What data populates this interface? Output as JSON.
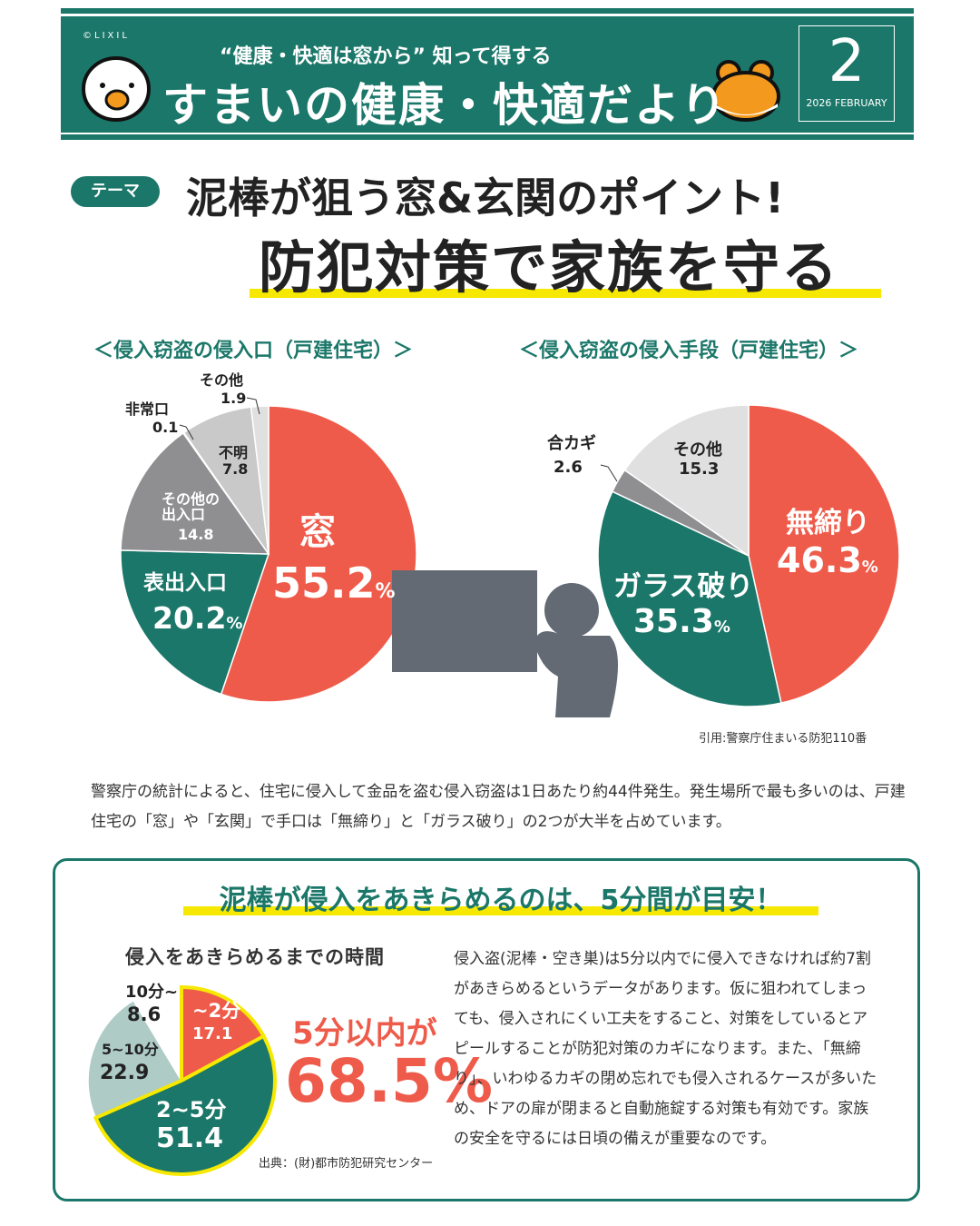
{
  "header": {
    "copyright": "©LIXIL",
    "tagline": "“健康・快適は窓から” 知って得する",
    "title": "すまいの健康・快適だより",
    "issue_number": "2",
    "issue_date": "2026 FEBRUARY"
  },
  "theme": {
    "badge": "テーマ",
    "headline": "泥棒が狙う窓&玄関のポイント!",
    "subheadline": "防犯対策で家族を守る"
  },
  "colors": {
    "teal": "#1b7769",
    "red": "#ef5b4a",
    "yellow": "#f6e800"
  },
  "chart_data": [
    {
      "type": "pie",
      "title": "＜侵入窃盗の侵入口（戸建住宅）＞",
      "unit": "%",
      "slices": [
        {
          "label": "窓",
          "value": 55.2,
          "color": "#ef5b4a"
        },
        {
          "label": "表出入口",
          "value": 20.2,
          "color": "#1b7769"
        },
        {
          "label": "その他の出入口",
          "value": 14.8,
          "color": "#8f8f92"
        },
        {
          "label": "非常口",
          "value": 0.1,
          "color": "#8f8f92"
        },
        {
          "label": "不明",
          "value": 7.8,
          "color": "#c9c9c9"
        },
        {
          "label": "その他",
          "value": 1.9,
          "color": "#e0e0e0"
        }
      ]
    },
    {
      "type": "pie",
      "title": "＜侵入窃盗の侵入手段（戸建住宅）＞",
      "unit": "%",
      "slices": [
        {
          "label": "無締り",
          "value": 46.3,
          "color": "#ef5b4a"
        },
        {
          "label": "ガラス破り",
          "value": 35.3,
          "color": "#1b7769"
        },
        {
          "label": "合カギ",
          "value": 2.6,
          "color": "#8f8f92"
        },
        {
          "label": "その他",
          "value": 15.3,
          "color": "#e0e0e0"
        }
      ]
    },
    {
      "type": "pie",
      "title": "侵入をあきらめるまでの時間",
      "unit": "%",
      "slices": [
        {
          "label": "~2分",
          "value": 17.1,
          "color": "#ef5b4a"
        },
        {
          "label": "2~5分",
          "value": 51.4,
          "color": "#1b7769"
        },
        {
          "label": "5~10分",
          "value": 22.9,
          "color": "#aecbc6"
        },
        {
          "label": "10分~",
          "value": 8.6,
          "color": "#ffffff"
        }
      ]
    }
  ],
  "charts_text": {
    "c1": {
      "window": "窓",
      "window_v": "55.2",
      "front": "表出入口",
      "front_v": "20.2",
      "otherdoor": "その他の\n出入口",
      "otherdoor_v": "14.8",
      "emergency": "非常口",
      "emergency_v": "0.1",
      "unknown": "不明",
      "unknown_v": "7.8",
      "other": "その他",
      "other_v": "1.9"
    },
    "c2": {
      "unlocked": "無締り",
      "unlocked_v": "46.3",
      "glass": "ガラス破り",
      "glass_v": "35.3",
      "key": "合カギ",
      "key_v": "2.6",
      "other": "その他",
      "other_v": "15.3"
    },
    "c3": {
      "a": "~2分",
      "a_v": "17.1",
      "b": "2~5分",
      "b_v": "51.4",
      "c": "5~10分",
      "c_v": "22.9",
      "d": "10分~",
      "d_v": "8.6"
    },
    "pct": "%"
  },
  "source1": "引用:警察庁住まいる防犯110番",
  "paragraph": "警察庁の統計によると、住宅に侵入して金品を盗む侵入窃盗は1日あたり約44件発生。発生場所で最も多いのは、戸建住宅の「窓」や「玄関」で手口は「無締り」と「ガラス破り」の2つが大半を占めています。",
  "box": {
    "title": "泥棒が侵入をあきらめるのは、5分間が目安！",
    "highlight_label": "5分以内が",
    "highlight_value": "68.5%",
    "source": "出典：(財)都市防犯研究センター",
    "paragraph": "侵入盗(泥棒・空き巣)は5分以内でに侵入できなければ約7割があきらめるというデータがあります。仮に狙われてしまっても、侵入されにくい工夫をすること、対策をしているとアピールすることが防犯対策のカギになります。また、「無締り」、いわゆるカギの閉め忘れでも侵入されるケースが多いため、ドアの扉が閉まると自動施錠する対策も有効です。家族の安全を守るには日頃の備えが重要なのです。"
  }
}
